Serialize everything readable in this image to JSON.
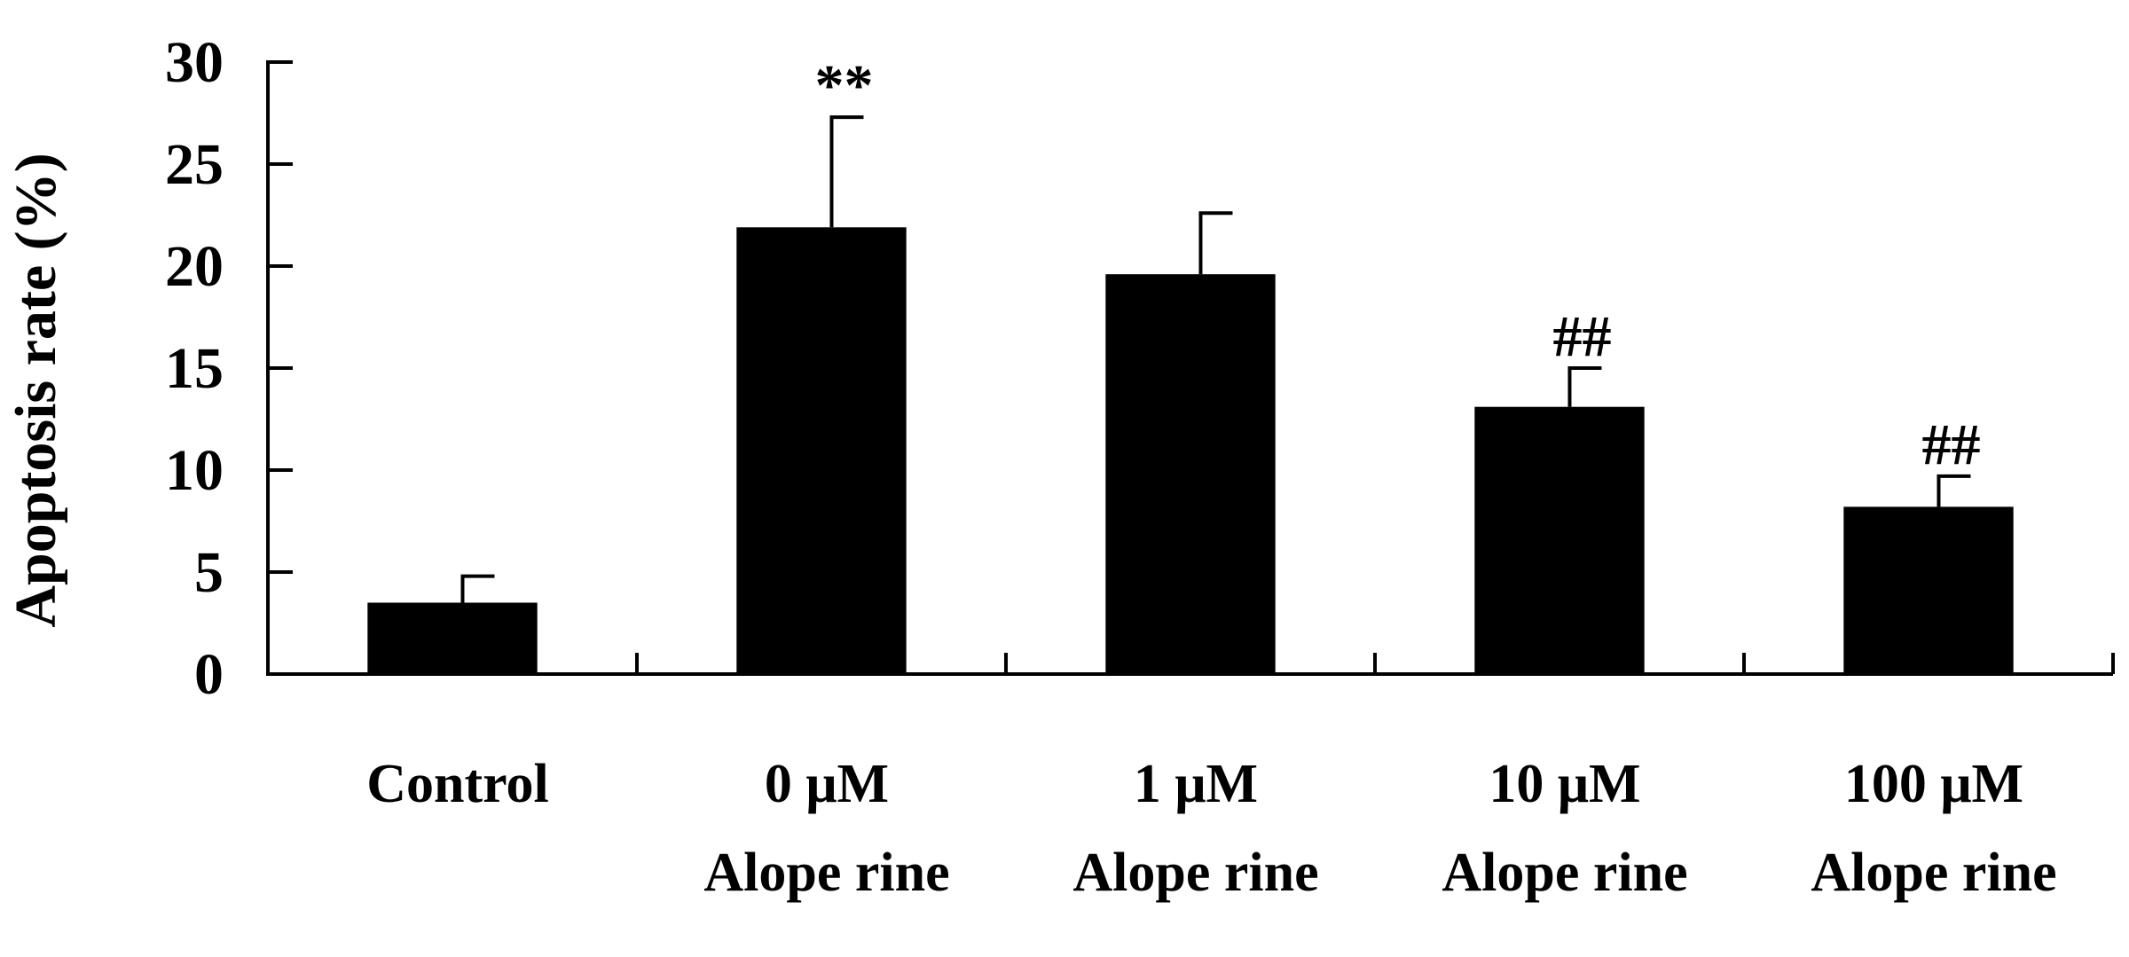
{
  "chart_data": {
    "type": "bar",
    "title": "",
    "xlabel": "",
    "ylabel": "Apoptosis rate (%)",
    "ylim": [
      0,
      30
    ],
    "yticks": [
      0,
      5,
      10,
      15,
      20,
      25,
      30
    ],
    "grid": false,
    "legend": "none",
    "bar_color": "#000000",
    "categories": [
      {
        "line1": "Control",
        "line2": ""
      },
      {
        "line1": "0 μM",
        "line2": "Alope rine"
      },
      {
        "line1": "1 μM",
        "line2": "Alope rine"
      },
      {
        "line1": "10 μM",
        "line2": "Alope rine"
      },
      {
        "line1": "100 μM",
        "line2": "Alope rine"
      }
    ],
    "values": [
      3.5,
      21.9,
      19.6,
      13.1,
      8.2
    ],
    "errors": [
      1.3,
      5.4,
      3.0,
      1.9,
      1.5
    ],
    "significance": [
      "",
      "**",
      "",
      "##",
      "##"
    ]
  }
}
